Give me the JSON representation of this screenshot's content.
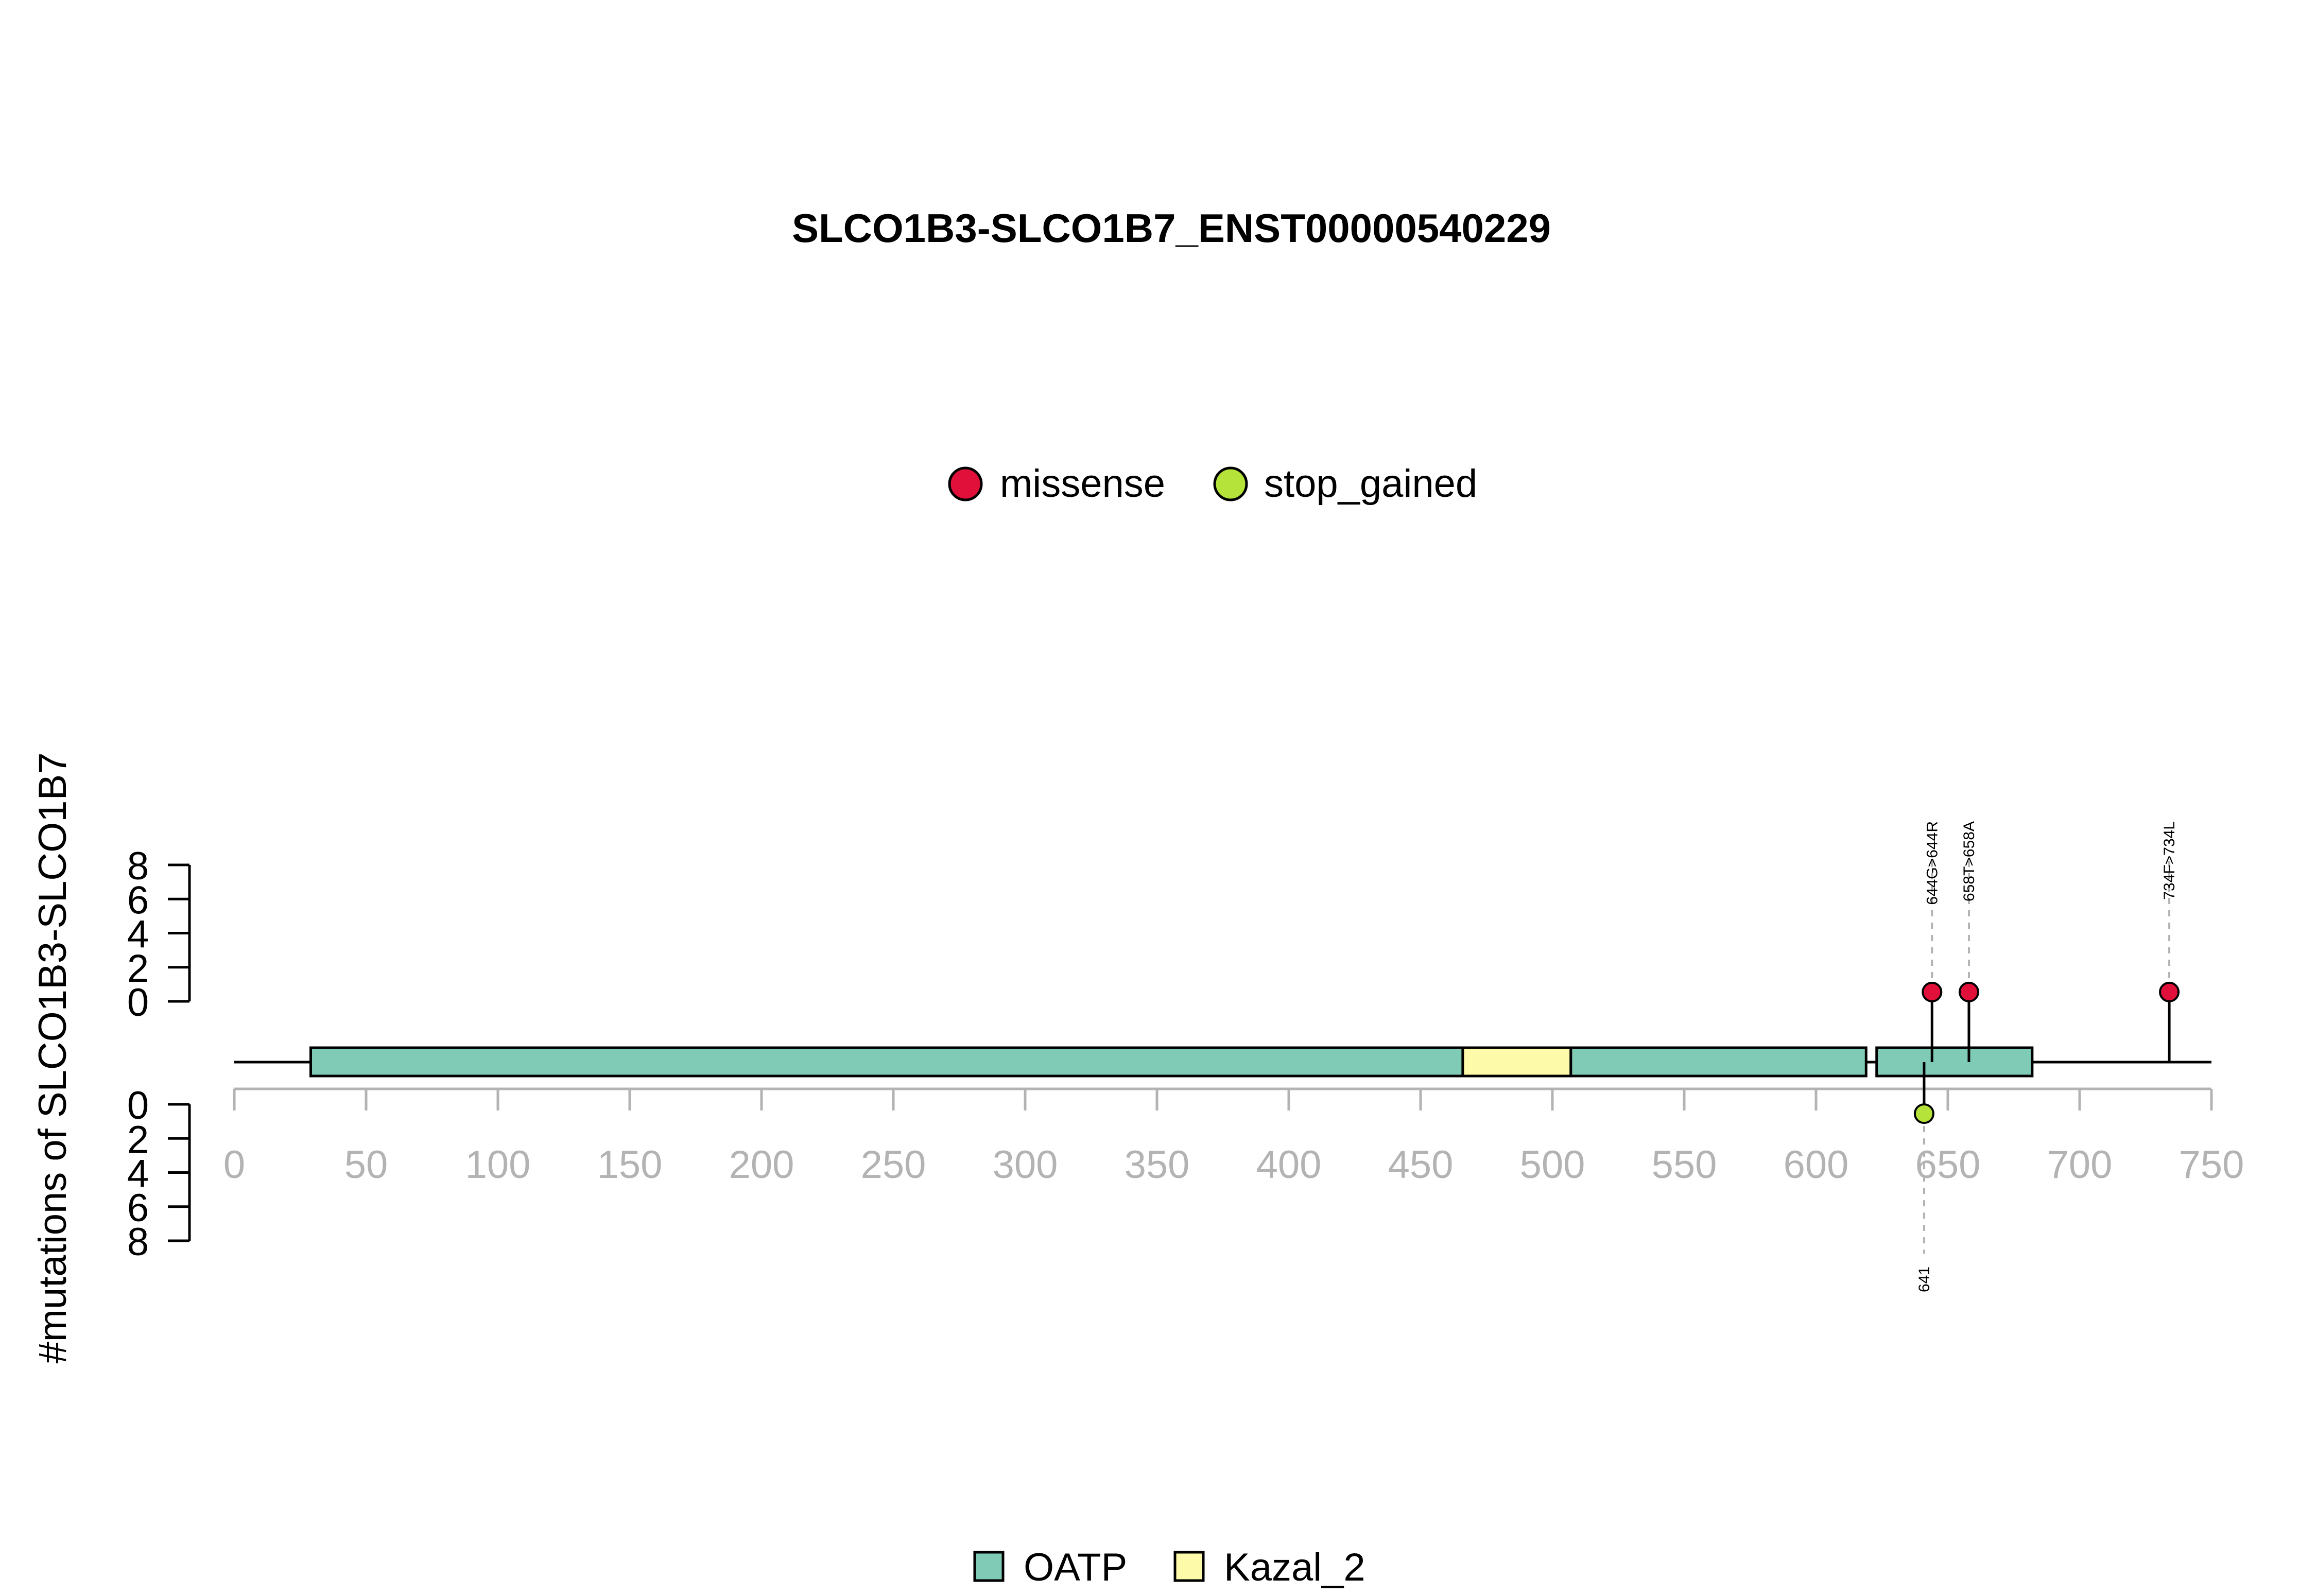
{
  "chart_data": {
    "type": "lollipop",
    "title": "SLCO1B3-SLCO1B7_ENST00000540229",
    "ylabel": "#mutations of SLCO1B3-SLCO1B7",
    "protein_length": 750,
    "xlim": [
      0,
      750
    ],
    "x_ticks": [
      0,
      50,
      100,
      150,
      200,
      250,
      300,
      350,
      400,
      450,
      500,
      550,
      600,
      650,
      700,
      750
    ],
    "y_ticks_top": [
      0,
      2,
      4,
      6,
      8
    ],
    "y_ticks_bottom": [
      0,
      2,
      4,
      6,
      8
    ],
    "ylim": [
      0,
      8
    ],
    "mutation_legend": [
      {
        "name": "missense",
        "color": "#e0103a"
      },
      {
        "name": "stop_gained",
        "color": "#b5e33a"
      }
    ],
    "domain_legend": [
      {
        "name": "OATP",
        "color": "#7fcbb6"
      },
      {
        "name": "Kazal_2",
        "color": "#fdfbaa"
      }
    ],
    "domains": [
      {
        "name": "OATP",
        "start": 29,
        "end": 466
      },
      {
        "name": "Kazal_2",
        "start": 466,
        "end": 507
      },
      {
        "name": "OATP",
        "start": 507,
        "end": 619
      },
      {
        "name": "OATP",
        "start": 623,
        "end": 682
      }
    ],
    "mutations": [
      {
        "pos": 644,
        "label": "644G>644R",
        "type": "missense",
        "count": 1,
        "side": "top"
      },
      {
        "pos": 658,
        "label": "658T>658A",
        "type": "missense",
        "count": 1,
        "side": "top"
      },
      {
        "pos": 734,
        "label": "734F>734L",
        "type": "missense",
        "count": 1,
        "side": "top"
      },
      {
        "pos": 641,
        "label": "641",
        "type": "stop_gained",
        "count": 1,
        "side": "bottom"
      }
    ]
  }
}
